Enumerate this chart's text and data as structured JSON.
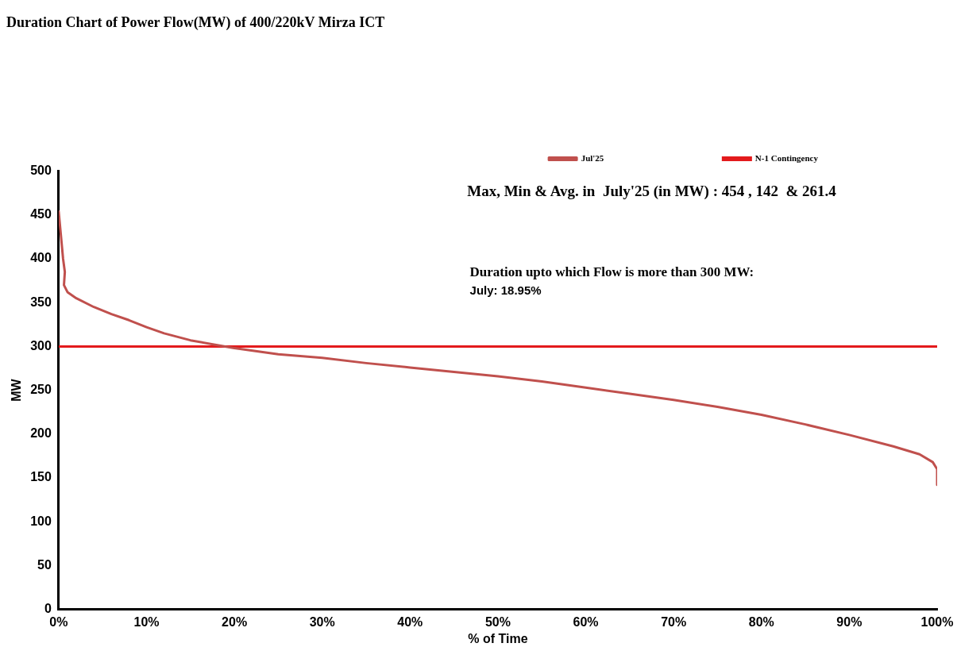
{
  "chart_data": {
    "type": "line",
    "title": "Duration Chart of Power Flow(MW) of 400/220kV Mirza ICT",
    "xlabel": "% of Time",
    "ylabel": "MW",
    "series": [
      {
        "name": "Jul'25",
        "color": "#c0504d",
        "x": [
          0,
          0.5,
          0.7,
          0.6,
          1,
          2,
          4,
          6,
          8,
          10,
          12,
          15,
          18.95,
          20,
          25,
          30,
          35,
          40,
          45,
          50,
          55,
          60,
          65,
          70,
          75,
          80,
          85,
          90,
          95,
          98,
          99.5,
          100,
          100
        ],
        "values": [
          454,
          400,
          385,
          370,
          362,
          355,
          345,
          337,
          330,
          322,
          315,
          307,
          300,
          298,
          291,
          287,
          281,
          276,
          271,
          266,
          260,
          253,
          246,
          239,
          231,
          222,
          211,
          199,
          186,
          177,
          168,
          160,
          142
        ]
      }
    ],
    "ref_lines": [
      {
        "axis": "y",
        "value": 300,
        "label": "N-1 Contingency",
        "color": "#e31a1c",
        "line_style": "solid"
      }
    ],
    "annotations": [
      "Max, Min & Avg. in  July'25 (in MW) : 454 , 142  & 261.4",
      "Duration upto which Flow is more than 300 MW:",
      "July: 18.95%"
    ],
    "xlim": [
      0,
      100
    ],
    "ylim": [
      0,
      500
    ],
    "xticks": [
      {
        "value": 0,
        "label": "0%"
      },
      {
        "value": 10,
        "label": "10%"
      },
      {
        "value": 20,
        "label": "20%"
      },
      {
        "value": 30,
        "label": "30%"
      },
      {
        "value": 40,
        "label": "40%"
      },
      {
        "value": 50,
        "label": "50%"
      },
      {
        "value": 60,
        "label": "60%"
      },
      {
        "value": 70,
        "label": "70%"
      },
      {
        "value": 80,
        "label": "80%"
      },
      {
        "value": 90,
        "label": "90%"
      },
      {
        "value": 100,
        "label": "100%"
      }
    ],
    "yticks": [
      0,
      50,
      100,
      150,
      200,
      250,
      300,
      350,
      400,
      450,
      500
    ],
    "grid": false,
    "legend": "top right",
    "marker": "none",
    "line_style": "solid"
  }
}
